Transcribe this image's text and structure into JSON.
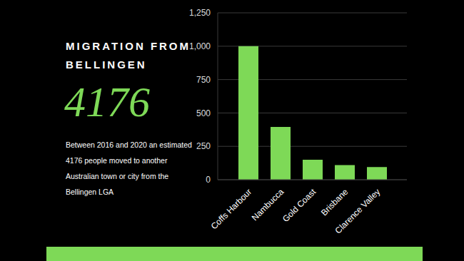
{
  "chart_data": {
    "type": "bar",
    "title": "MIGRATION FROM BELLINGEN",
    "annotations": [
      "4176",
      "Between 2016 and 2020 an estimated 4176 people moved to another Australian town or city from the Bellingen LGA"
    ],
    "categories": [
      "Coffs Harbour",
      "Nambucca",
      "Gold Coast",
      "Brisbane",
      "Clarence Valley"
    ],
    "values": [
      1000,
      395,
      150,
      110,
      95
    ],
    "color": "#7ed957",
    "ylim": [
      0,
      1250
    ],
    "yticks": [
      0,
      250,
      500,
      750,
      {
        "value": 1000,
        "label": "1,000"
      },
      {
        "value": 1250,
        "label": "1,250"
      }
    ],
    "grid": true
  }
}
